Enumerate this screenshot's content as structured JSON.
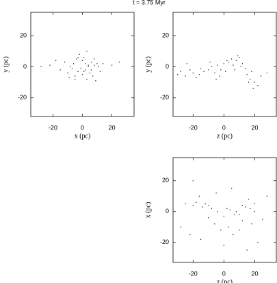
{
  "chart_data": [
    {
      "type": "scatter",
      "title": "t = 3.75 Myr",
      "xlabel": "x (pc)",
      "ylabel": "y (pc)",
      "xlim": [
        -35,
        35
      ],
      "ylim": [
        -32,
        35
      ],
      "xticks": [
        -20,
        0,
        20
      ],
      "yticks": [
        -20,
        0,
        20
      ],
      "color": "#000000",
      "x": [
        -22,
        -15,
        -12,
        -10,
        -8,
        -6,
        -5,
        -4,
        -3,
        -2,
        -1,
        0,
        0,
        1,
        2,
        2,
        3,
        4,
        5,
        6,
        7,
        8,
        9,
        10,
        11,
        12,
        -18,
        -7,
        -3,
        1,
        4,
        6,
        8,
        -9,
        -5,
        14,
        20,
        -28,
        25,
        3
      ],
      "y": [
        1,
        -2,
        3,
        -4,
        0,
        2,
        -6,
        5,
        -3,
        8,
        -1,
        4,
        -5,
        6,
        -2,
        2,
        -8,
        0,
        -4,
        3,
        -6,
        1,
        -9,
        2,
        0,
        -3,
        4,
        -1,
        6,
        -3,
        1,
        -2,
        5,
        -7,
        -8,
        2,
        1,
        0,
        3,
        10
      ]
    },
    {
      "type": "scatter",
      "xlabel": "z (pc)",
      "ylabel": "y (pc)",
      "xlim": [
        -33,
        34
      ],
      "ylim": [
        -32,
        35
      ],
      "xticks": [
        -20,
        0,
        20
      ],
      "yticks": [
        -20,
        0,
        20
      ],
      "color": "#000000",
      "x": [
        -30,
        -28,
        -25,
        -22,
        -20,
        -18,
        -15,
        -13,
        -10,
        -8,
        -6,
        -4,
        -2,
        0,
        1,
        3,
        5,
        6,
        8,
        10,
        12,
        14,
        15,
        17,
        18,
        20,
        22,
        24,
        28,
        -24,
        -16,
        -9,
        -3,
        2,
        7,
        11,
        16,
        19,
        -5,
        9
      ],
      "y": [
        -5,
        -3,
        -6,
        -2,
        -4,
        -7,
        -1,
        -3,
        -2,
        0,
        -4,
        1,
        -2,
        2,
        -3,
        3,
        5,
        1,
        4,
        6,
        2,
        -1,
        -5,
        -8,
        -3,
        -10,
        -12,
        -6,
        -4,
        2,
        -5,
        3,
        -6,
        4,
        -2,
        0,
        -10,
        -14,
        -8,
        7
      ]
    },
    {
      "type": "scatter",
      "xlabel": "z (pc)",
      "ylabel": "x (pc)",
      "xlim": [
        -33,
        34
      ],
      "ylim": [
        -33,
        35
      ],
      "xticks": [
        -20,
        0,
        20
      ],
      "yticks": [
        -20,
        0,
        20
      ],
      "color": "#000000",
      "x": [
        -28,
        -25,
        -22,
        -20,
        -18,
        -16,
        -14,
        -12,
        -10,
        -8,
        -6,
        -4,
        -2,
        0,
        2,
        4,
        6,
        8,
        10,
        12,
        14,
        16,
        18,
        20,
        22,
        25,
        28,
        -15,
        -5,
        5,
        15,
        -20,
        0,
        10,
        20,
        -10,
        7,
        12,
        17,
        3
      ],
      "y": [
        -10,
        5,
        -15,
        4,
        6,
        10,
        3,
        5,
        4,
        2,
        -8,
        0,
        -12,
        -3,
        2,
        1,
        -15,
        0,
        -2,
        -6,
        3,
        8,
        -8,
        5,
        -20,
        -5,
        10,
        -18,
        12,
        15,
        -25,
        20,
        -22,
        -12,
        0,
        -4,
        -2,
        4,
        2,
        -10
      ]
    }
  ]
}
